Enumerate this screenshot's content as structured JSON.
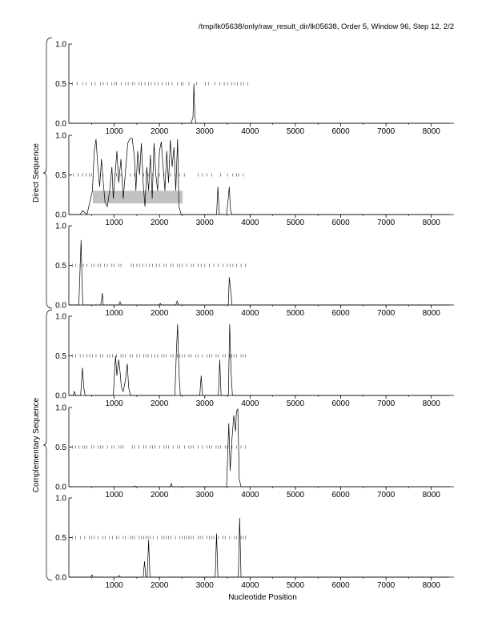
{
  "header": {
    "title": "/tmp/lk05638/only/raw_result_dir/lk05638, Order 5, Window 96, Step 12, 2/2"
  },
  "groups": [
    {
      "label": "Direct Sequence",
      "panels": [
        0,
        1,
        2
      ]
    },
    {
      "label": "Complementary Sequence",
      "panels": [
        3,
        4,
        5
      ]
    }
  ],
  "chart_data": {
    "type": "line",
    "xlabel": "Nucleotide Position",
    "xlim": [
      0,
      8500
    ],
    "ylim": [
      0,
      1
    ],
    "xticks": [
      1000,
      2000,
      3000,
      4000,
      5000,
      6000,
      7000,
      8000
    ],
    "yticks": [
      0.0,
      0.5,
      1.0
    ],
    "ytick_labels": [
      "0.0",
      "0.5",
      "1.0"
    ],
    "grid": false,
    "panels": [
      {
        "name": "direct-frame-1",
        "stop_codons": [
          80,
          180,
          300,
          380,
          500,
          580,
          700,
          760,
          850,
          950,
          1010,
          1050,
          1160,
          1250,
          1310,
          1400,
          1450,
          1550,
          1600,
          1680,
          1760,
          1820,
          1900,
          1970,
          2060,
          2150,
          2200,
          2280,
          2400,
          2480,
          2520,
          2650,
          2820,
          3010,
          3080,
          3220,
          3330,
          3430,
          3500,
          3600,
          3660,
          3720,
          3800,
          3860,
          3950
        ],
        "signal": [
          [
            0,
            0
          ],
          [
            2700,
            0
          ],
          [
            2740,
            0.08
          ],
          [
            2760,
            0.5
          ],
          [
            2780,
            0.1
          ],
          [
            2800,
            0
          ],
          [
            8400,
            0
          ]
        ],
        "highlight": null
      },
      {
        "name": "direct-frame-2",
        "stop_codons": [
          100,
          200,
          300,
          380,
          450,
          500,
          700,
          750,
          1050,
          1150,
          1350,
          1450,
          1650,
          1750,
          1850,
          2000,
          2100,
          2250,
          2350,
          2450,
          2550,
          2850,
          2950,
          3050,
          3150,
          3350,
          3500,
          3620,
          3700,
          3750,
          3850
        ],
        "signal": [
          [
            0,
            0
          ],
          [
            250,
            0
          ],
          [
            300,
            0.05
          ],
          [
            400,
            0
          ],
          [
            520,
            0.3
          ],
          [
            560,
            0.8
          ],
          [
            600,
            0.95
          ],
          [
            640,
            0.6
          ],
          [
            680,
            0.35
          ],
          [
            720,
            0.7
          ],
          [
            760,
            0.4
          ],
          [
            800,
            0.15
          ],
          [
            850,
            0.1
          ],
          [
            900,
            0.3
          ],
          [
            950,
            0.6
          ],
          [
            980,
            0.2
          ],
          [
            1020,
            0.5
          ],
          [
            1060,
            0.8
          ],
          [
            1100,
            0.4
          ],
          [
            1150,
            0.7
          ],
          [
            1200,
            0.2
          ],
          [
            1250,
            0.55
          ],
          [
            1300,
            0.9
          ],
          [
            1350,
            0.96
          ],
          [
            1400,
            0.96
          ],
          [
            1450,
            0.7
          ],
          [
            1480,
            0.3
          ],
          [
            1520,
            0.8
          ],
          [
            1560,
            0.5
          ],
          [
            1600,
            0.9
          ],
          [
            1640,
            0.4
          ],
          [
            1680,
            0.1
          ],
          [
            1720,
            0.6
          ],
          [
            1760,
            0.3
          ],
          [
            1800,
            0.75
          ],
          [
            1840,
            0.2
          ],
          [
            1880,
            0.9
          ],
          [
            1920,
            0.5
          ],
          [
            1960,
            0.3
          ],
          [
            2000,
            0.8
          ],
          [
            2040,
            0.92
          ],
          [
            2080,
            0.6
          ],
          [
            2120,
            0.3
          ],
          [
            2160,
            0.8
          ],
          [
            2200,
            0.4
          ],
          [
            2240,
            0.94
          ],
          [
            2280,
            0.6
          ],
          [
            2320,
            0.85
          ],
          [
            2360,
            0.3
          ],
          [
            2400,
            0.95
          ],
          [
            2430,
            0.1
          ],
          [
            2480,
            0
          ],
          [
            3260,
            0
          ],
          [
            3290,
            0.35
          ],
          [
            3320,
            0
          ],
          [
            3480,
            0
          ],
          [
            3510,
            0.15
          ],
          [
            3540,
            0.35
          ],
          [
            3570,
            0.05
          ],
          [
            3600,
            0
          ],
          [
            8400,
            0
          ]
        ],
        "highlight": {
          "x": [
            530,
            2510
          ],
          "y": [
            0.14,
            0.3
          ]
        }
      },
      {
        "name": "direct-frame-3",
        "stop_codons": [
          80,
          150,
          250,
          320,
          400,
          500,
          560,
          640,
          700,
          790,
          850,
          950,
          1000,
          1100,
          1150,
          1380,
          1420,
          1500,
          1560,
          1630,
          1700,
          1780,
          1850,
          1930,
          2000,
          2100,
          2150,
          2250,
          2300,
          2400,
          2450,
          2500,
          2600,
          2700,
          2750,
          2850,
          2920,
          3000,
          3100,
          3200,
          3300,
          3400,
          3500,
          3560,
          3620,
          3700,
          3800,
          3900
        ],
        "signal": [
          [
            0,
            0
          ],
          [
            220,
            0
          ],
          [
            250,
            0.5
          ],
          [
            270,
            0.82
          ],
          [
            290,
            0.3
          ],
          [
            310,
            0
          ],
          [
            700,
            0
          ],
          [
            720,
            0.05
          ],
          [
            740,
            0.15
          ],
          [
            760,
            0
          ],
          [
            1100,
            0
          ],
          [
            1130,
            0.04
          ],
          [
            1160,
            0
          ],
          [
            1980,
            0
          ],
          [
            2020,
            0.02
          ],
          [
            2040,
            0
          ],
          [
            2360,
            0
          ],
          [
            2390,
            0.05
          ],
          [
            2420,
            0
          ],
          [
            3520,
            0
          ],
          [
            3540,
            0.35
          ],
          [
            3570,
            0.2
          ],
          [
            3600,
            0
          ],
          [
            8400,
            0
          ]
        ],
        "highlight": null
      },
      {
        "name": "complementary-frame-1",
        "stop_codons": [
          80,
          150,
          250,
          320,
          400,
          460,
          520,
          600,
          700,
          750,
          850,
          900,
          960,
          1050,
          1150,
          1200,
          1250,
          1350,
          1400,
          1500,
          1560,
          1650,
          1700,
          1750,
          1830,
          1900,
          1960,
          2050,
          2100,
          2150,
          2250,
          2300,
          2400,
          2450,
          2500,
          2560,
          2650,
          2700,
          2800,
          2850,
          2950,
          3050,
          3100,
          3150,
          3250,
          3300,
          3400,
          3450,
          3550,
          3600,
          3650,
          3700,
          3800,
          3850,
          3900
        ],
        "signal": [
          [
            0,
            0
          ],
          [
            100,
            0
          ],
          [
            120,
            0.05
          ],
          [
            150,
            0
          ],
          [
            260,
            0
          ],
          [
            300,
            0.35
          ],
          [
            330,
            0.1
          ],
          [
            360,
            0
          ],
          [
            980,
            0
          ],
          [
            1000,
            0.2
          ],
          [
            1030,
            0.5
          ],
          [
            1060,
            0.25
          ],
          [
            1100,
            0.45
          ],
          [
            1130,
            0.3
          ],
          [
            1160,
            0.1
          ],
          [
            1200,
            0.05
          ],
          [
            1250,
            0.2
          ],
          [
            1290,
            0.4
          ],
          [
            1320,
            0.1
          ],
          [
            1360,
            0
          ],
          [
            2340,
            0
          ],
          [
            2370,
            0.5
          ],
          [
            2400,
            0.9
          ],
          [
            2430,
            0.3
          ],
          [
            2460,
            0
          ],
          [
            2890,
            0
          ],
          [
            2920,
            0.25
          ],
          [
            2950,
            0
          ],
          [
            3300,
            0
          ],
          [
            3330,
            0.45
          ],
          [
            3360,
            0
          ],
          [
            3520,
            0
          ],
          [
            3550,
            0.9
          ],
          [
            3580,
            0.3
          ],
          [
            3610,
            0
          ],
          [
            8400,
            0
          ]
        ],
        "highlight": null
      },
      {
        "name": "complementary-frame-2",
        "stop_codons": [
          80,
          150,
          220,
          300,
          350,
          400,
          500,
          550,
          650,
          700,
          750,
          850,
          950,
          1000,
          1100,
          1150,
          1200,
          1400,
          1450,
          1550,
          1650,
          1700,
          1800,
          1850,
          1900,
          2000,
          2100,
          2150,
          2200,
          2300,
          2400,
          2450,
          2550,
          2650,
          2700,
          2750,
          2850,
          2950,
          3050,
          3100,
          3150,
          3250,
          3300,
          3350,
          3450,
          3500,
          3600,
          3700,
          3800,
          3900
        ],
        "signal": [
          [
            0,
            0
          ],
          [
            1440,
            0
          ],
          [
            1460,
            0.01
          ],
          [
            1480,
            0
          ],
          [
            2240,
            0
          ],
          [
            2260,
            0.04
          ],
          [
            2280,
            0
          ],
          [
            3480,
            0
          ],
          [
            3500,
            0.3
          ],
          [
            3530,
            0.8
          ],
          [
            3560,
            0.2
          ],
          [
            3600,
            0.6
          ],
          [
            3640,
            0.9
          ],
          [
            3680,
            0.7
          ],
          [
            3700,
            0.95
          ],
          [
            3730,
            0.98
          ],
          [
            3760,
            0.1
          ],
          [
            3800,
            0
          ],
          [
            8400,
            0
          ]
        ],
        "highlight": null
      },
      {
        "name": "complementary-frame-3",
        "stop_codons": [
          80,
          150,
          260,
          350,
          450,
          500,
          560,
          640,
          750,
          800,
          900,
          960,
          1050,
          1100,
          1200,
          1250,
          1350,
          1400,
          1450,
          1550,
          1600,
          1650,
          1700,
          1750,
          1800,
          1860,
          1950,
          2050,
          2100,
          2150,
          2200,
          2250,
          2350,
          2450,
          2500,
          2550,
          2600,
          2650,
          2700,
          2750,
          2850,
          2900,
          2950,
          3050,
          3100,
          3150,
          3200,
          3300,
          3400,
          3450,
          3550,
          3650,
          3700,
          3800,
          3850,
          3900
        ],
        "signal": [
          [
            0,
            0
          ],
          [
            480,
            0
          ],
          [
            510,
            0.03
          ],
          [
            540,
            0
          ],
          [
            1080,
            0
          ],
          [
            1110,
            0.02
          ],
          [
            1140,
            0
          ],
          [
            1640,
            0
          ],
          [
            1670,
            0.2
          ],
          [
            1700,
            0
          ],
          [
            1730,
            0
          ],
          [
            1760,
            0.47
          ],
          [
            1790,
            0
          ],
          [
            3230,
            0
          ],
          [
            3260,
            0.55
          ],
          [
            3290,
            0
          ],
          [
            3740,
            0
          ],
          [
            3770,
            0.75
          ],
          [
            3800,
            0
          ],
          [
            8400,
            0
          ]
        ],
        "highlight": null
      }
    ]
  }
}
